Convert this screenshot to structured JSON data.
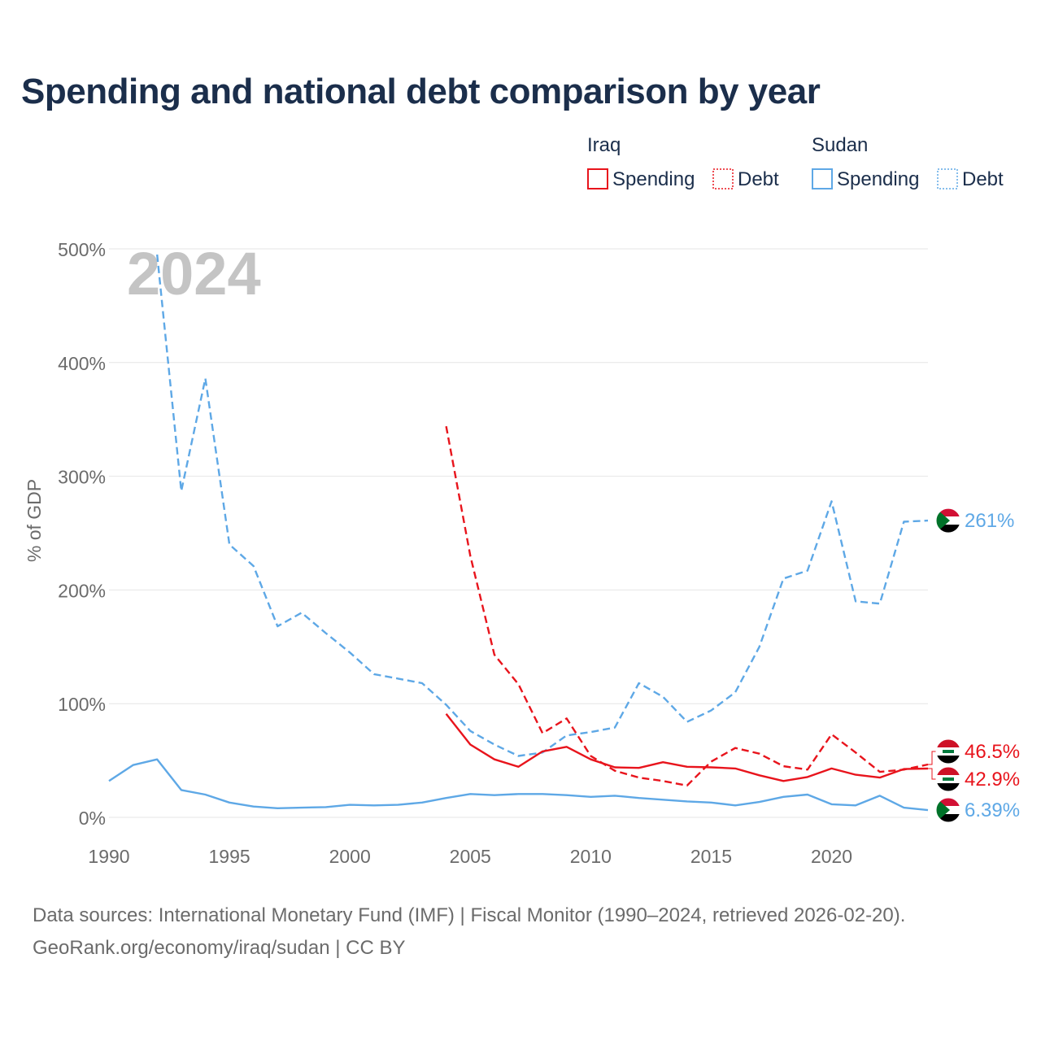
{
  "title": "Spending and national debt comparison by year",
  "year_label": "2024",
  "footer": {
    "line1": "Data sources: International Monetary Fund (IMF) | Fiscal Monitor (1990–2024, retrieved 2026-02-20).",
    "line2": "GeoRank.org/economy/iraq/sudan | CC BY"
  },
  "legend": {
    "groups": [
      {
        "country": "Iraq",
        "color": "#e8141c",
        "items": [
          "Spending",
          "Debt"
        ]
      },
      {
        "country": "Sudan",
        "color": "#5ea8e6",
        "items": [
          "Spending",
          "Debt"
        ]
      }
    ]
  },
  "colors": {
    "iraq": "#e8141c",
    "sudan": "#5ea8e6",
    "grid": "#e6e6e6",
    "axis": "#6b6b6b",
    "year": "#c4c4c4"
  },
  "chart_data": {
    "type": "line",
    "ylabel": "% of GDP",
    "xlim": [
      1990,
      2024
    ],
    "ylim": [
      0,
      500
    ],
    "xticks": [
      1990,
      1995,
      2000,
      2005,
      2010,
      2015,
      2020
    ],
    "yticks": [
      0,
      100,
      200,
      300,
      400,
      500
    ],
    "ytick_labels": [
      "0%",
      "100%",
      "200%",
      "300%",
      "400%",
      "500%"
    ],
    "series": [
      {
        "name": "Sudan Debt",
        "country": "Sudan",
        "measure": "Debt",
        "style": "dashed",
        "x": [
          1992,
          1993,
          1994,
          1995,
          1996,
          1997,
          1998,
          1999,
          2000,
          2001,
          2002,
          2003,
          2004,
          2005,
          2006,
          2007,
          2008,
          2009,
          2010,
          2011,
          2012,
          2013,
          2014,
          2015,
          2016,
          2017,
          2018,
          2019,
          2020,
          2021,
          2022,
          2023,
          2024
        ],
        "values": [
          495,
          287,
          386,
          240,
          221,
          168,
          180,
          162,
          145,
          126,
          122,
          118,
          99,
          76,
          64,
          54,
          57,
          72,
          75,
          79,
          118,
          106,
          84,
          94,
          110,
          150,
          210,
          217,
          278,
          190,
          188,
          260,
          261
        ]
      },
      {
        "name": "Sudan Spending",
        "country": "Sudan",
        "measure": "Spending",
        "style": "solid",
        "x": [
          1990,
          1991,
          1992,
          1993,
          1994,
          1995,
          1996,
          1997,
          1998,
          1999,
          2000,
          2001,
          2002,
          2003,
          2004,
          2005,
          2006,
          2007,
          2008,
          2009,
          2010,
          2011,
          2012,
          2013,
          2014,
          2015,
          2016,
          2017,
          2018,
          2019,
          2020,
          2021,
          2022,
          2023,
          2024
        ],
        "values": [
          32,
          46,
          51,
          24,
          20,
          13,
          9.5,
          8,
          8.5,
          9,
          11,
          10.5,
          11,
          13,
          17,
          20.5,
          19.5,
          20.5,
          20.5,
          19.5,
          18,
          19,
          17,
          15.5,
          14,
          13,
          10.5,
          13.5,
          18,
          20,
          11.5,
          10.5,
          19,
          8.5,
          6.39
        ]
      },
      {
        "name": "Iraq Debt",
        "country": "Iraq",
        "measure": "Debt",
        "style": "dashed",
        "x": [
          2004,
          2005,
          2006,
          2007,
          2008,
          2009,
          2010,
          2011,
          2012,
          2013,
          2014,
          2015,
          2016,
          2017,
          2018,
          2019,
          2020,
          2021,
          2022,
          2023,
          2024
        ],
        "values": [
          344,
          230,
          143,
          117,
          74,
          87,
          54,
          41,
          35,
          32,
          28,
          49,
          61,
          56,
          45,
          42,
          73,
          57,
          40,
          42,
          46.5
        ]
      },
      {
        "name": "Iraq Spending",
        "country": "Iraq",
        "measure": "Spending",
        "style": "solid",
        "x": [
          2004,
          2005,
          2006,
          2007,
          2008,
          2009,
          2010,
          2011,
          2012,
          2013,
          2014,
          2015,
          2016,
          2017,
          2018,
          2019,
          2020,
          2021,
          2022,
          2023,
          2024
        ],
        "values": [
          91,
          64,
          51,
          44.5,
          58,
          62,
          51,
          44,
          43.5,
          48.5,
          44.5,
          44,
          43,
          37,
          32,
          35.5,
          43,
          37.5,
          35,
          42.5,
          42.9
        ]
      }
    ],
    "end_labels": [
      {
        "series": "Sudan Debt",
        "country": "Sudan",
        "value": 261,
        "text": "261%"
      },
      {
        "series": "Iraq Debt",
        "country": "Iraq",
        "value": 46.5,
        "text": "46.5%"
      },
      {
        "series": "Iraq Spending",
        "country": "Iraq",
        "value": 42.9,
        "text": "42.9%"
      },
      {
        "series": "Sudan Spending",
        "country": "Sudan",
        "value": 6.39,
        "text": "6.39%"
      }
    ]
  }
}
